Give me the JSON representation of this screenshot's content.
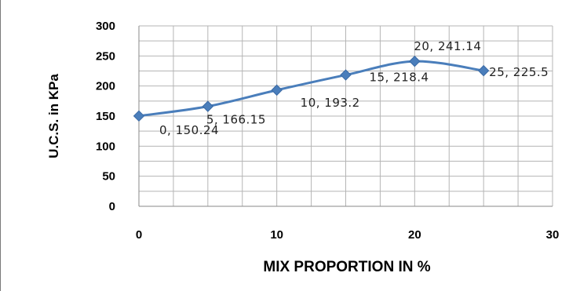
{
  "chart_data": {
    "type": "line",
    "title": "",
    "xlabel": "MIX PROPORTION IN %",
    "ylabel": "U.C.S. in KPa",
    "xlim": [
      0,
      30
    ],
    "ylim": [
      0,
      300
    ],
    "x_ticks": [
      "0",
      "10",
      "20",
      "30"
    ],
    "y_ticks": [
      "0",
      "50",
      "100",
      "150",
      "200",
      "250",
      "300"
    ],
    "grid": true,
    "legend": "none",
    "series": [
      {
        "x": [
          0,
          5,
          10,
          15,
          20,
          25
        ],
        "y": [
          150.24,
          166.15,
          193.2,
          218.4,
          241.14,
          225.5
        ],
        "labels": [
          "0, 150.24",
          "5, 166.15",
          "10, 193.2",
          "15, 218.4",
          "20, 241.14",
          "25, 225.5"
        ],
        "color": "#4a7ebb",
        "marker": "diamond"
      }
    ]
  }
}
